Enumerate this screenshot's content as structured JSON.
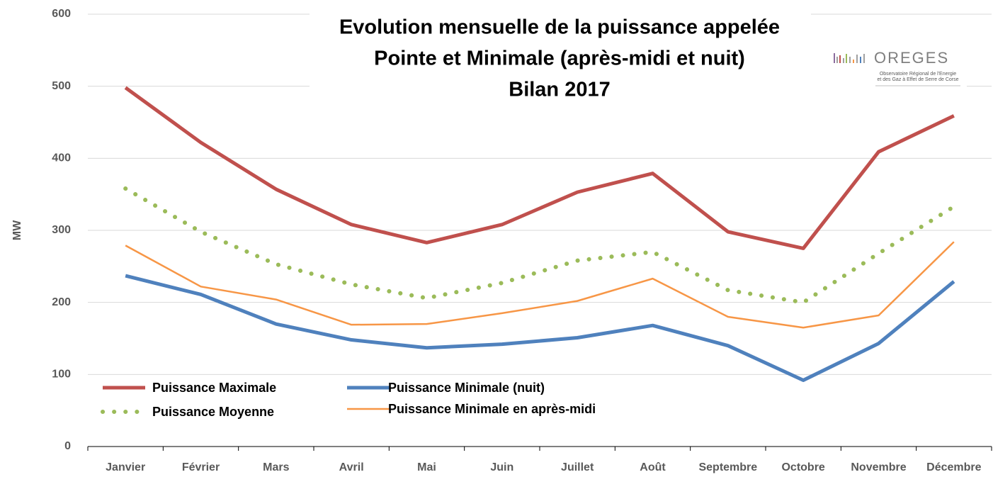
{
  "chart_data": {
    "type": "line",
    "title": [
      "Evolution mensuelle de la puissance appelée",
      "Pointe et Minimale (après-midi et nuit)",
      "Bilan 2017"
    ],
    "ylabel": "MW",
    "categories": [
      "Janvier",
      "Février",
      "Mars",
      "Avril",
      "Mai",
      "Juin",
      "Juillet",
      "Août",
      "Septembre",
      "Octobre",
      "Novembre",
      "Décembre"
    ],
    "series": [
      {
        "name": "Puissance Maximale",
        "color": "#c0504d",
        "style": "solid",
        "width": 5,
        "values": [
          498,
          422,
          357,
          308,
          283,
          308,
          353,
          379,
          298,
          275,
          409,
          459
        ]
      },
      {
        "name": "Puissance Minimale (nuit)",
        "color": "#4f81bd",
        "style": "solid",
        "width": 5,
        "values": [
          237,
          211,
          170,
          148,
          137,
          142,
          151,
          168,
          140,
          92,
          143,
          229
        ]
      },
      {
        "name": "Puissance Moyenne",
        "color": "#9bbb59",
        "style": "dotted",
        "width": 6,
        "values": [
          358,
          298,
          253,
          225,
          206,
          227,
          258,
          270,
          217,
          200,
          268,
          333
        ]
      },
      {
        "name": "Puissance Minimale en après-midi",
        "color": "#f79646",
        "style": "solid",
        "width": 2.5,
        "values": [
          279,
          222,
          204,
          169,
          170,
          185,
          202,
          233,
          180,
          165,
          182,
          284
        ]
      }
    ],
    "ylim": [
      0,
      600
    ],
    "yticks": [
      0,
      100,
      200,
      300,
      400,
      500,
      600
    ],
    "grid": true,
    "logo": {
      "name": "OREGES",
      "subtitle": [
        "Observatoire Régional de l'Energie",
        "et des Gaz à Effet de Serre de Corse"
      ]
    }
  }
}
